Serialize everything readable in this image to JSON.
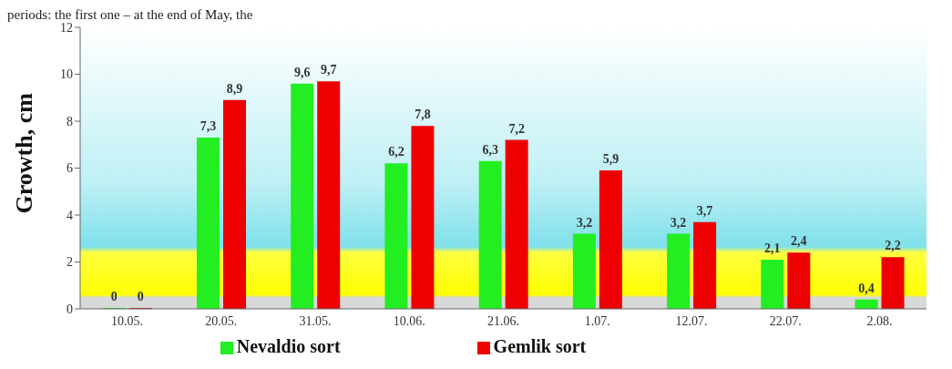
{
  "chart_data": {
    "type": "bar",
    "annotations": [
      "periods: the first one – at the end of May, the"
    ],
    "ylabel": "Growth, cm",
    "categories": [
      "10.05.",
      "20.05.",
      "31.05.",
      "10.06.",
      "21.06.",
      "1.07.",
      "12.07.",
      "22.07.",
      "2.08."
    ],
    "series": [
      {
        "name": "Nevaldio sort",
        "color": "#22ee22",
        "values": [
          0,
          7.3,
          9.6,
          6.2,
          6.3,
          3.2,
          3.2,
          2.1,
          0.4
        ],
        "value_labels": [
          "0",
          "7,3",
          "9,6",
          "6,2",
          "6,3",
          "3,2",
          "3,2",
          "2,1",
          "0,4"
        ]
      },
      {
        "name": "Gemlik sort",
        "color": "#ee0000",
        "values": [
          0,
          8.9,
          9.7,
          7.8,
          7.2,
          5.9,
          3.7,
          2.4,
          2.2
        ],
        "value_labels": [
          "0",
          "8,9",
          "9,7",
          "7,8",
          "7,2",
          "5,9",
          "3,7",
          "2,4",
          "2,2"
        ]
      }
    ],
    "ylim": [
      0,
      12
    ],
    "yticks": [
      0,
      2,
      4,
      6,
      8,
      10,
      12
    ],
    "grid": false,
    "legend": "bottom"
  }
}
